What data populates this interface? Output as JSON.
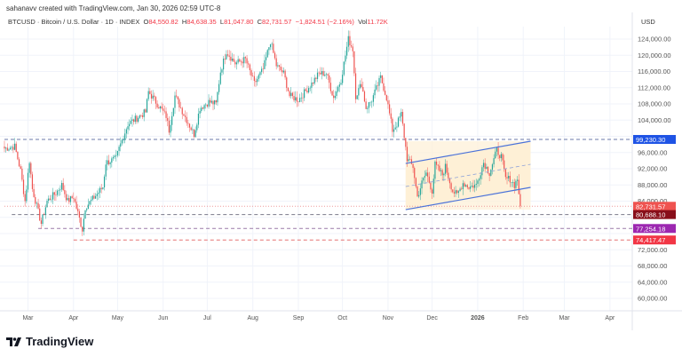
{
  "credit": "sahanavv created with TradingView.com, Jan 30, 2026 02:59 UTC-8",
  "legend": {
    "symbol": "BTCUSD · Bitcoin / U.S. Dollar · 1D · INDEX",
    "open_label": "O",
    "open": "84,550.82",
    "high_label": "H",
    "high": "84,638.35",
    "low_label": "L",
    "low": "81,047.80",
    "close_label": "C",
    "close": "82,731.57",
    "change": "−1,824.51 (−2.16%)",
    "vol_label": "Vol",
    "vol": "11.72K"
  },
  "currency": "USD",
  "brand": "TradingView",
  "colors": {
    "up": "#26a69a",
    "down": "#ef5350",
    "channel_line": "#4a72d9",
    "channel_fill": "#fdf0d5",
    "grid": "#f0f3fa"
  },
  "chart_data": {
    "type": "candlestick",
    "interval": "1D",
    "x_start": "2025-02-13",
    "x_end": "2026-01-30",
    "ylim": [
      57000,
      128000
    ],
    "y_ticks": [
      "124,000.00",
      "120,000.00",
      "116,000.00",
      "112,000.00",
      "108,000.00",
      "104,000.00",
      "96,000.00",
      "92,000.00",
      "88,000.00",
      "84,000.00",
      "72,000.00",
      "68,000.00",
      "64,000.00",
      "60,000.00"
    ],
    "y_tick_values": [
      124000,
      120000,
      116000,
      112000,
      108000,
      104000,
      96000,
      92000,
      88000,
      84000,
      72000,
      68000,
      64000,
      60000
    ],
    "x_ticks": [
      {
        "label": "Mar",
        "date": "2025-03-01"
      },
      {
        "label": "Apr",
        "date": "2025-04-01"
      },
      {
        "label": "May",
        "date": "2025-05-01"
      },
      {
        "label": "Jun",
        "date": "2025-06-01"
      },
      {
        "label": "Jul",
        "date": "2025-07-01"
      },
      {
        "label": "Aug",
        "date": "2025-08-01"
      },
      {
        "label": "Sep",
        "date": "2025-09-01"
      },
      {
        "label": "Oct",
        "date": "2025-10-01"
      },
      {
        "label": "Nov",
        "date": "2025-11-01"
      },
      {
        "label": "Dec",
        "date": "2025-12-01"
      },
      {
        "label": "2026",
        "date": "2026-01-01",
        "bold": true
      },
      {
        "label": "Feb",
        "date": "2026-02-01"
      },
      {
        "label": "Mar",
        "date": "2026-03-01"
      },
      {
        "label": "Apr",
        "date": "2026-04-01"
      }
    ],
    "close_keypoints": [
      [
        "2025-02-13",
        97000
      ],
      [
        "2025-02-20",
        97500
      ],
      [
        "2025-02-24",
        91500
      ],
      [
        "2025-02-27",
        84000
      ],
      [
        "2025-03-02",
        94000
      ],
      [
        "2025-03-04",
        87000
      ],
      [
        "2025-03-10",
        78500
      ],
      [
        "2025-03-14",
        84000
      ],
      [
        "2025-03-20",
        86000
      ],
      [
        "2025-03-24",
        88000
      ],
      [
        "2025-03-28",
        84000
      ],
      [
        "2025-04-01",
        85000
      ],
      [
        "2025-04-07",
        77000
      ],
      [
        "2025-04-09",
        82500
      ],
      [
        "2025-04-14",
        84500
      ],
      [
        "2025-04-21",
        87500
      ],
      [
        "2025-04-23",
        93500
      ],
      [
        "2025-04-30",
        94500
      ],
      [
        "2025-05-02",
        97000
      ],
      [
        "2025-05-08",
        103000
      ],
      [
        "2025-05-12",
        104000
      ],
      [
        "2025-05-20",
        106000
      ],
      [
        "2025-05-22",
        111000
      ],
      [
        "2025-05-27",
        108500
      ],
      [
        "2025-06-03",
        105000
      ],
      [
        "2025-06-05",
        101500
      ],
      [
        "2025-06-09",
        110000
      ],
      [
        "2025-06-15",
        105500
      ],
      [
        "2025-06-22",
        100500
      ],
      [
        "2025-06-26",
        107000
      ],
      [
        "2025-07-02",
        108500
      ],
      [
        "2025-07-07",
        108000
      ],
      [
        "2025-07-10",
        116000
      ],
      [
        "2025-07-14",
        121000
      ],
      [
        "2025-07-20",
        118000
      ],
      [
        "2025-07-27",
        119000
      ],
      [
        "2025-08-02",
        113000
      ],
      [
        "2025-08-08",
        116500
      ],
      [
        "2025-08-13",
        123500
      ],
      [
        "2025-08-17",
        117500
      ],
      [
        "2025-08-22",
        115500
      ],
      [
        "2025-08-26",
        110000
      ],
      [
        "2025-09-01",
        109000
      ],
      [
        "2025-09-10",
        113000
      ],
      [
        "2025-09-15",
        115500
      ],
      [
        "2025-09-20",
        115500
      ],
      [
        "2025-09-25",
        109500
      ],
      [
        "2025-09-30",
        114000
      ],
      [
        "2025-10-05",
        124000
      ],
      [
        "2025-10-08",
        121500
      ],
      [
        "2025-10-10",
        110000
      ],
      [
        "2025-10-14",
        113000
      ],
      [
        "2025-10-17",
        107000
      ],
      [
        "2025-10-21",
        109000
      ],
      [
        "2025-10-27",
        114500
      ],
      [
        "2025-10-31",
        109500
      ],
      [
        "2025-11-04",
        101500
      ],
      [
        "2025-11-07",
        103000
      ],
      [
        "2025-11-10",
        105500
      ],
      [
        "2025-11-14",
        94500
      ],
      [
        "2025-11-18",
        92500
      ],
      [
        "2025-11-21",
        85000
      ],
      [
        "2025-11-24",
        88500
      ],
      [
        "2025-11-27",
        91000
      ],
      [
        "2025-12-01",
        86500
      ],
      [
        "2025-12-03",
        93000
      ],
      [
        "2025-12-08",
        90500
      ],
      [
        "2025-12-10",
        92500
      ],
      [
        "2025-12-15",
        86500
      ],
      [
        "2025-12-18",
        85500
      ],
      [
        "2025-12-22",
        88500
      ],
      [
        "2025-12-26",
        87500
      ],
      [
        "2025-12-31",
        88000
      ],
      [
        "2026-01-05",
        93500
      ],
      [
        "2026-01-09",
        91000
      ],
      [
        "2026-01-14",
        96500
      ],
      [
        "2026-01-17",
        95000
      ],
      [
        "2026-01-20",
        89500
      ],
      [
        "2026-01-23",
        89500
      ],
      [
        "2026-01-26",
        88000
      ],
      [
        "2026-01-28",
        89500
      ],
      [
        "2026-01-30",
        82731.57
      ]
    ],
    "horizontal_levels": [
      {
        "price": 99230.3,
        "label": "99,230.30",
        "color": "#1e53e5",
        "style": "dashed",
        "line_color": "#6b7aa8",
        "from": "2025-02-13"
      },
      {
        "price": 82731.57,
        "label": "82,731.57",
        "color": "#ef5350",
        "style": "dotted",
        "line_color": "#ef9a9a",
        "from": "2025-02-13"
      },
      {
        "price": 80688.1,
        "label": "80,688.10",
        "color": "#880e1a",
        "style": "dashed",
        "line_color": "#7a7a8a",
        "from": "2025-02-18"
      },
      {
        "price": 77254.18,
        "label": "77,254.18",
        "color": "#9c27b0",
        "style": "dashed",
        "line_color": "#9a7aa8",
        "from": "2025-03-08"
      },
      {
        "price": 74417.47,
        "label": "74,417.47",
        "color": "#f23645",
        "style": "dashed",
        "line_color": "#e57373",
        "from": "2025-04-01"
      }
    ],
    "parallel_channel": {
      "start": "2025-11-13",
      "end": "2026-02-06",
      "upper": [
        93300,
        98800
      ],
      "lower": [
        81900,
        87400
      ]
    }
  }
}
